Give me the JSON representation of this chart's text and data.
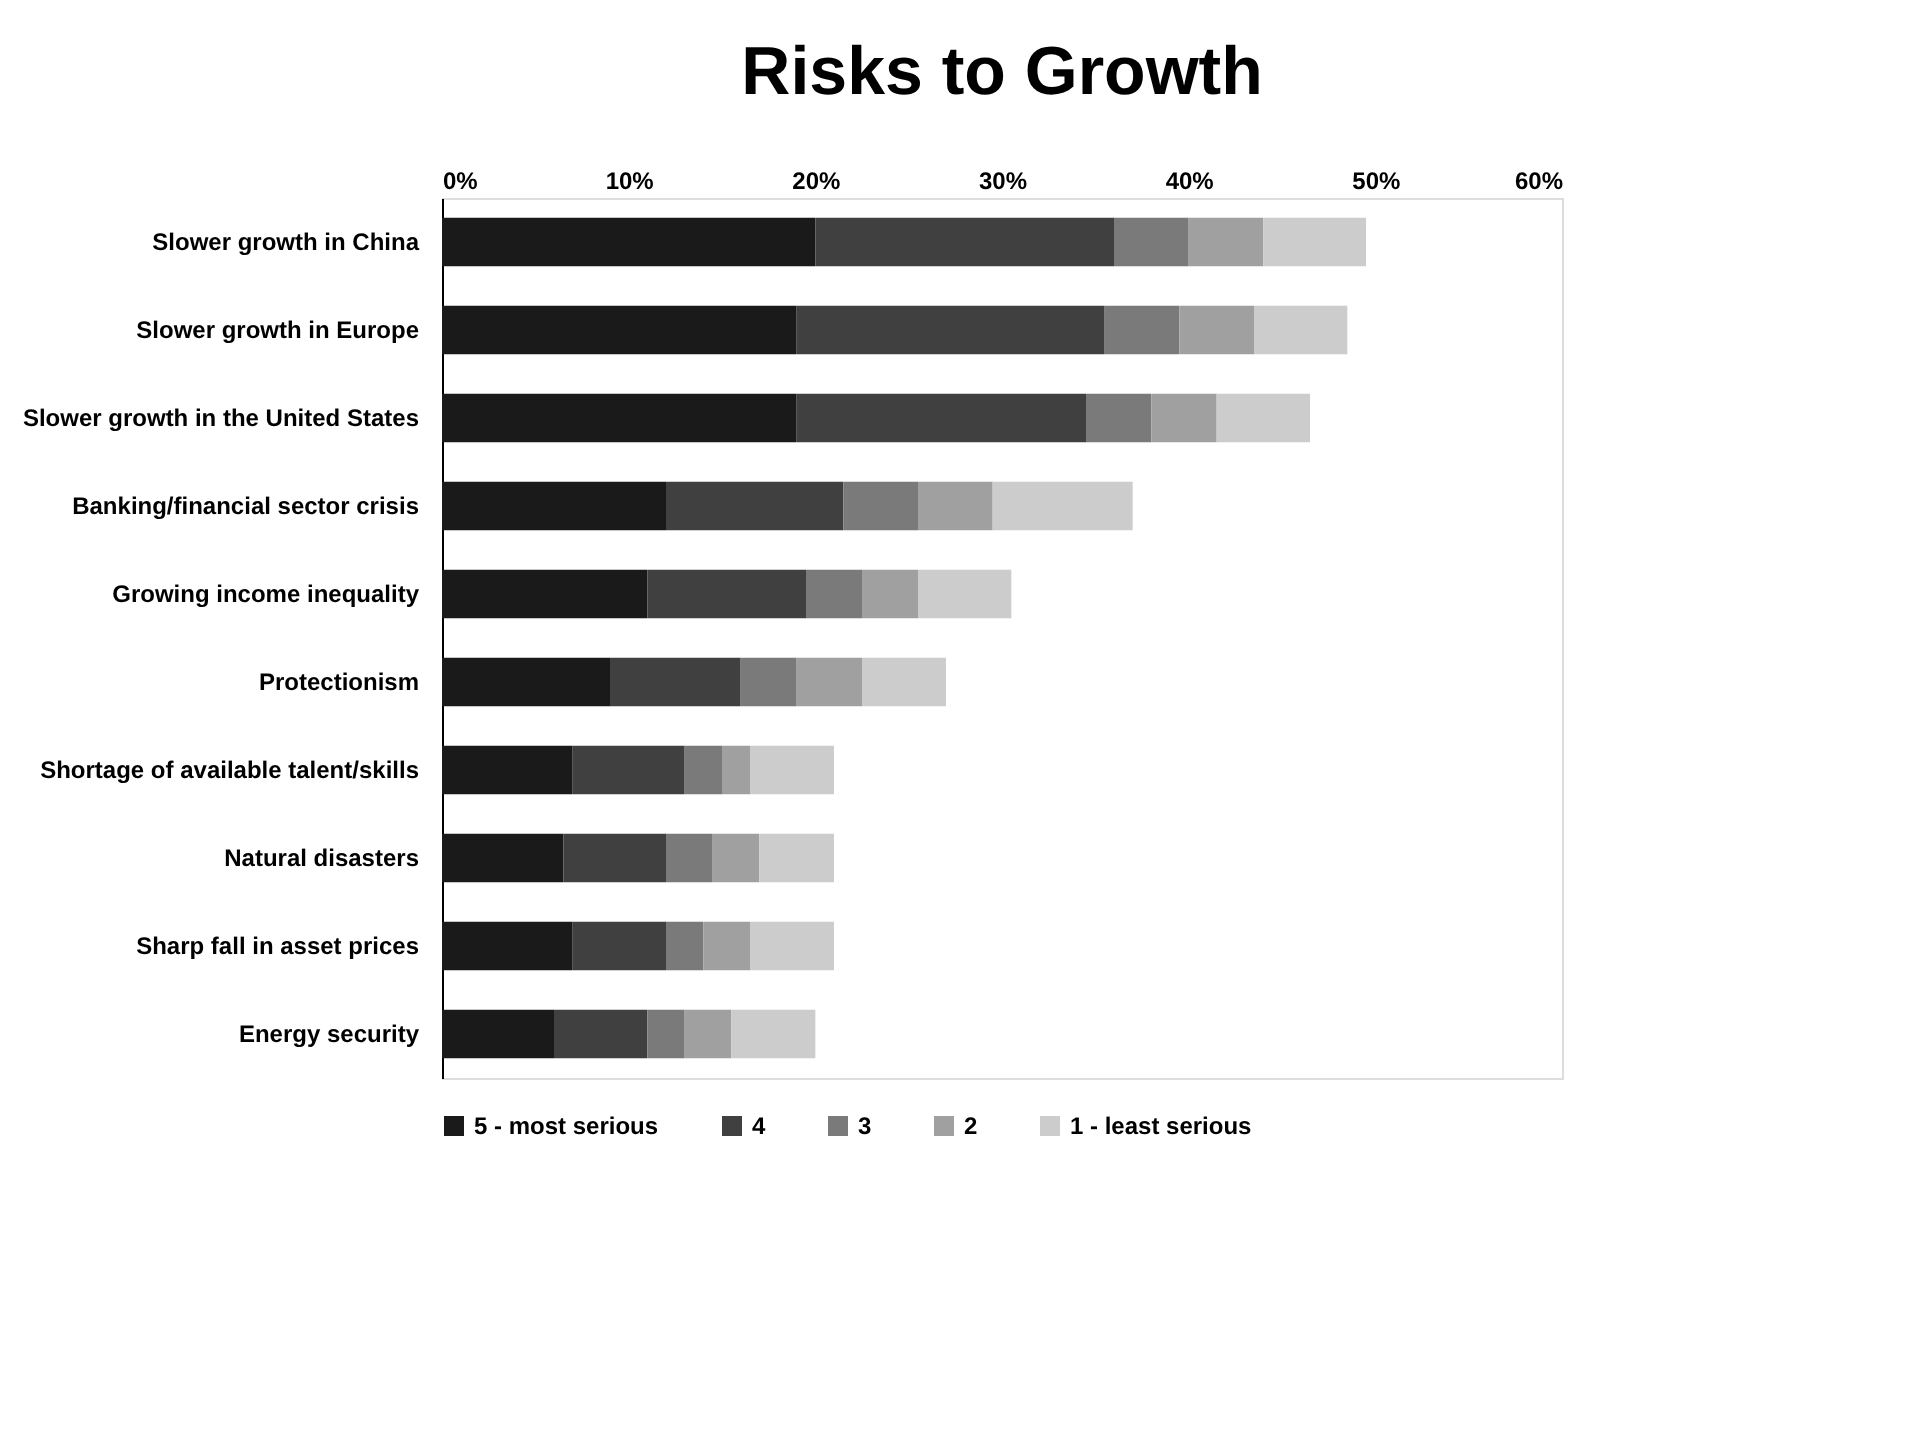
{
  "chart_data": {
    "type": "bar",
    "title": "Risks to Growth",
    "orientation": "horizontal",
    "stacked": true,
    "categories": [
      "Slower growth in China",
      "Slower growth in Europe",
      "Slower growth in the United States",
      "Banking/financial sector crisis",
      "Growing income inequality",
      "Protectionism",
      "Shortage of available talent/skills",
      "Natural disasters",
      "Sharp fall in asset prices",
      "Energy security"
    ],
    "series": [
      {
        "name": "5 - most serious",
        "color": "#1a1a1a",
        "values": [
          20,
          19,
          19,
          12,
          11,
          9,
          7,
          6.5,
          7,
          6
        ]
      },
      {
        "name": "4",
        "color": "#404040",
        "values": [
          16,
          16.5,
          15.5,
          9.5,
          8.5,
          7,
          6,
          5.5,
          5,
          5
        ]
      },
      {
        "name": "3",
        "color": "#7a7a7a",
        "values": [
          4,
          4,
          3.5,
          4,
          3,
          3,
          2,
          2.5,
          2,
          2
        ]
      },
      {
        "name": "2",
        "color": "#a0a0a0",
        "values": [
          4,
          4,
          3.5,
          4,
          3,
          3.5,
          1.5,
          2.5,
          2.5,
          2.5
        ]
      },
      {
        "name": "1 - least serious",
        "color": "#cccccc",
        "values": [
          5.5,
          5,
          5,
          7.5,
          5,
          4.5,
          4.5,
          4,
          4.5,
          4.5
        ]
      }
    ],
    "xlim": [
      0,
      60
    ],
    "xticks": [
      {
        "value": 0,
        "label": "0%"
      },
      {
        "value": 10,
        "label": "10%"
      },
      {
        "value": 20,
        "label": "20%"
      },
      {
        "value": 30,
        "label": "30%"
      },
      {
        "value": 40,
        "label": "40%"
      },
      {
        "value": 50,
        "label": "50%"
      },
      {
        "value": 60,
        "label": "60%"
      }
    ],
    "grid": false,
    "legend": "bottom"
  }
}
